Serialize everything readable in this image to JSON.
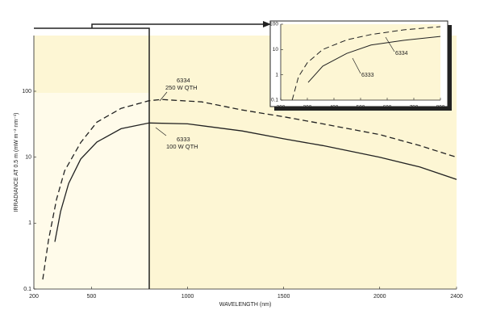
{
  "chart_data": [
    {
      "type": "line",
      "log_y": true,
      "x_label": "WAVELENGTH (nm)",
      "y_label": "IRRADIANCE AT 0.5 m (mW m⁻² nm⁻¹)",
      "xlim": [
        200,
        2400
      ],
      "xticks": [
        200,
        500,
        1000,
        1500,
        2000,
        2400
      ],
      "ylim": [
        0.1,
        700
      ],
      "yticks": [
        0.1,
        1,
        10,
        100
      ],
      "series": [
        {
          "name": "6334",
          "label": "250 W QTH",
          "color": "#222222",
          "linestyle": "dashed",
          "x": [
            246,
            276,
            318,
            360,
            444,
            528,
            654,
            800,
            864,
            1074,
            1284,
            1500,
            1704,
            2000,
            2208,
            2400
          ],
          "values": [
            0.14,
            0.55,
            2.3,
            6.2,
            16.7,
            34,
            55,
            72,
            75,
            69,
            52,
            41,
            32,
            22,
            15,
            10
          ]
        },
        {
          "name": "6333",
          "label": "100 W QTH",
          "color": "#222222",
          "linestyle": "solid",
          "x": [
            309,
            339,
            381,
            444,
            528,
            654,
            800,
            1000,
            1284,
            1500,
            1704,
            2000,
            2208,
            2400
          ],
          "values": [
            0.52,
            1.5,
            4,
            9.4,
            17,
            27,
            33,
            32,
            25,
            19,
            15,
            10,
            7.1,
            4.6
          ]
        }
      ]
    },
    {
      "type": "line",
      "log_y": true,
      "xlim": [
        200,
        800
      ],
      "xticks": [
        200,
        300,
        400,
        500,
        600,
        700,
        800
      ],
      "ylim": [
        0.1,
        100
      ],
      "yticks": [
        0.1,
        1,
        10,
        100
      ],
      "series": [
        {
          "name": "6334",
          "color": "#222222",
          "linestyle": "dashed",
          "x": [
            243,
            267,
            300,
            358,
            448,
            539,
            661,
            800
          ],
          "values": [
            0.1,
            0.85,
            3,
            10,
            24,
            39,
            60,
            80
          ]
        },
        {
          "name": "6333",
          "color": "#222222",
          "linestyle": "solid",
          "x": [
            303,
            358,
            448,
            539,
            661,
            800
          ],
          "values": [
            0.5,
            2.2,
            7,
            15,
            23,
            33
          ]
        }
      ]
    }
  ]
}
